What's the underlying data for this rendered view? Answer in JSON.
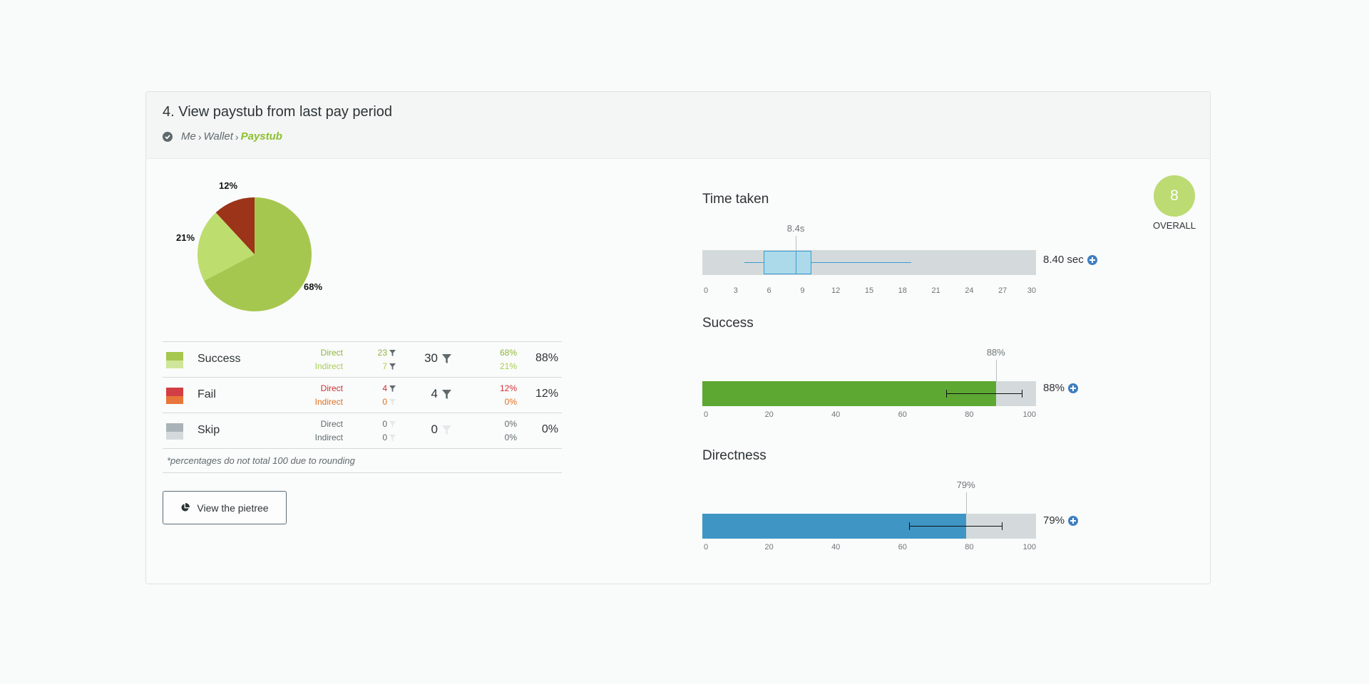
{
  "task": {
    "title": "4. View paystub from last pay period",
    "breadcrumb": [
      "Me",
      "Wallet",
      "Paystub"
    ]
  },
  "pie": {
    "slices": [
      {
        "name": "Success Direct",
        "percent": 68,
        "label": "68%",
        "color": "#a6c74f"
      },
      {
        "name": "Success Indirect",
        "percent": 21,
        "label": "21%",
        "color": "#bedd6f"
      },
      {
        "name": "Fail Direct",
        "percent": 12,
        "label": "12%",
        "color": "#9b3418"
      }
    ]
  },
  "results": {
    "rows": [
      {
        "name": "Success",
        "colors": [
          "#a5c74e",
          "#cfe69a"
        ],
        "direct_label": "Direct",
        "indirect_label": "Indirect",
        "direct_count": "23",
        "indirect_count": "7",
        "total": "30",
        "direct_pct": "68%",
        "indirect_pct": "21%",
        "total_pct": "88%",
        "direct_color": "#8cb83a",
        "indirect_color": "#a8cf4f"
      },
      {
        "name": "Fail",
        "colors": [
          "#d23e44",
          "#e8763a"
        ],
        "direct_label": "Direct",
        "indirect_label": "Indirect",
        "direct_count": "4",
        "indirect_count": "0",
        "total": "4",
        "direct_pct": "12%",
        "indirect_pct": "0%",
        "total_pct": "12%",
        "direct_color": "#cf2e34",
        "indirect_color": "#e0701f"
      },
      {
        "name": "Skip",
        "colors": [
          "#aab4b8",
          "#d4dadc"
        ],
        "direct_label": "Direct",
        "indirect_label": "Indirect",
        "direct_count": "0",
        "indirect_count": "0",
        "total": "0",
        "direct_pct": "0%",
        "indirect_pct": "0%",
        "total_pct": "0%",
        "direct_color": "#5f6a6d",
        "indirect_color": "#5f6a6d"
      }
    ],
    "footnote": "*percentages do not total 100 due to rounding"
  },
  "pietree_button": "View the pietree",
  "overall": {
    "score": "8",
    "label": "OVERALL",
    "color": "#bcdb73"
  },
  "time_taken": {
    "title": "Time taken",
    "marker_label": "8.4s",
    "value_label": "8.40 sec",
    "axis_ticks": [
      "0",
      "3",
      "6",
      "9",
      "12",
      "15",
      "18",
      "21",
      "24",
      "27",
      "30"
    ],
    "axis_max": 30,
    "whisker_low": 3.8,
    "q1": 5.5,
    "median": 8.4,
    "q3": 9.8,
    "whisker_high": 18.8
  },
  "success": {
    "title": "Success",
    "marker_label": "88%",
    "value_label": "88%",
    "value": 88,
    "error_low": 73,
    "error_high": 96,
    "axis_ticks": [
      "0",
      "20",
      "40",
      "60",
      "80",
      "100"
    ],
    "color": "#5da832"
  },
  "directness": {
    "title": "Directness",
    "marker_label": "79%",
    "value_label": "79%",
    "value": 79,
    "error_low": 62,
    "error_high": 90,
    "axis_ticks": [
      "0",
      "20",
      "40",
      "60",
      "80",
      "100"
    ],
    "color": "#3f96c5"
  }
}
